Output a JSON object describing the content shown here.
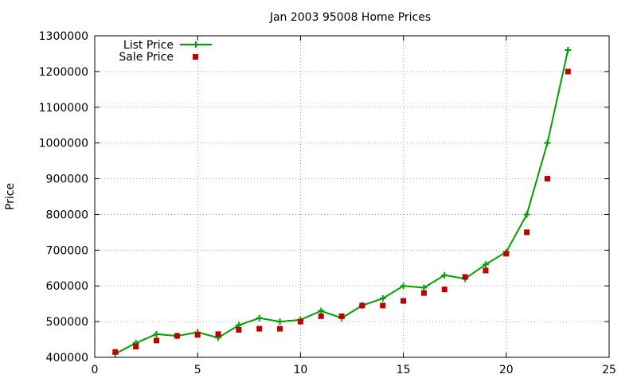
{
  "chart_data": {
    "type": "line",
    "title": "Jan 2003 95008 Home Prices",
    "xlabel": "",
    "ylabel": "Price",
    "xlim": [
      0,
      25
    ],
    "ylim": [
      400000,
      1300000
    ],
    "x_ticks": [
      0,
      5,
      10,
      15,
      20,
      25
    ],
    "y_ticks": [
      400000,
      500000,
      600000,
      700000,
      800000,
      900000,
      1000000,
      1100000,
      1200000,
      1300000
    ],
    "grid": true,
    "legend_position": "top-left",
    "series": [
      {
        "name": "List Price",
        "style": "line-with-plus-markers",
        "color": "#00a000",
        "x": [
          1,
          2,
          3,
          4,
          5,
          6,
          7,
          8,
          9,
          10,
          11,
          12,
          13,
          14,
          15,
          16,
          17,
          18,
          19,
          20,
          21,
          22,
          23
        ],
        "y": [
          410000,
          440000,
          465000,
          460000,
          470000,
          455000,
          490000,
          510000,
          500000,
          505000,
          530000,
          510000,
          545000,
          565000,
          600000,
          595000,
          630000,
          620000,
          660000,
          695000,
          800000,
          1000000,
          1260000
        ]
      },
      {
        "name": "Sale Price",
        "style": "square-markers",
        "color": "#c00000",
        "x": [
          1,
          2,
          3,
          4,
          5,
          6,
          7,
          8,
          9,
          10,
          11,
          12,
          13,
          14,
          15,
          16,
          17,
          18,
          19,
          20,
          21,
          22,
          23
        ],
        "y": [
          415000,
          430000,
          447000,
          460000,
          463000,
          465000,
          477000,
          480000,
          480000,
          500000,
          515000,
          515000,
          545000,
          545000,
          558000,
          580000,
          590000,
          625000,
          643000,
          690000,
          750000,
          900000,
          1200000
        ]
      }
    ]
  }
}
